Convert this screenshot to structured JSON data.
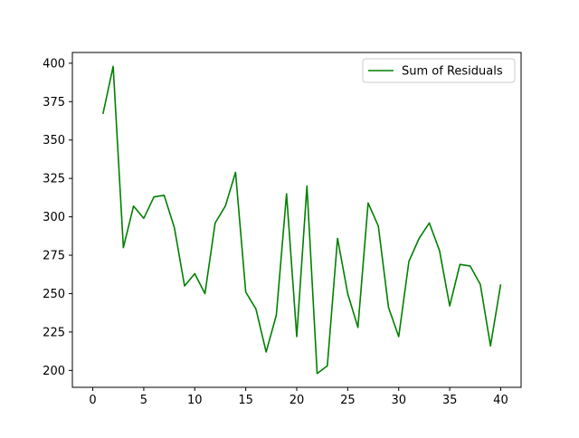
{
  "chart_data": {
    "type": "line",
    "title": "",
    "xlabel": "",
    "ylabel": "",
    "xlim": [
      -2,
      42
    ],
    "ylim": [
      189,
      407
    ],
    "x_ticks": [
      0,
      5,
      10,
      15,
      20,
      25,
      30,
      35,
      40
    ],
    "y_ticks": [
      200,
      225,
      250,
      275,
      300,
      325,
      350,
      375,
      400
    ],
    "grid": false,
    "legend_position": "top-right",
    "series": [
      {
        "name": "Sum of Residuals",
        "color": "#008000",
        "x": [
          1,
          2,
          3,
          4,
          5,
          6,
          7,
          8,
          9,
          10,
          11,
          12,
          13,
          14,
          15,
          16,
          17,
          18,
          19,
          20,
          21,
          22,
          23,
          24,
          25,
          26,
          27,
          28,
          29,
          30,
          31,
          32,
          33,
          34,
          35,
          36,
          37,
          38,
          39,
          40
        ],
        "values": [
          367,
          398,
          280,
          307,
          299,
          313,
          314,
          293,
          255,
          263,
          250,
          296,
          307,
          329,
          251,
          240,
          212,
          236,
          315,
          222,
          320,
          198,
          203,
          286,
          250,
          228,
          309,
          294,
          241,
          222,
          271,
          286,
          296,
          278,
          242,
          269,
          268,
          256,
          216,
          256
        ]
      }
    ]
  }
}
